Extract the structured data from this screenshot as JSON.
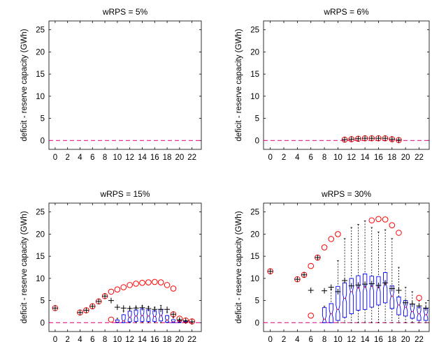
{
  "chart_data": [
    {
      "type": "box",
      "title": "wRPS = 5%",
      "ylabel": "deficit - reserve capacity (GWh)",
      "xlabel": "",
      "xlim": [
        -1,
        23.5
      ],
      "ylim": [
        -2,
        27
      ],
      "xticks": [
        0,
        2,
        4,
        6,
        8,
        10,
        12,
        14,
        16,
        18,
        20,
        22
      ],
      "yticks": [
        0,
        5,
        10,
        15,
        20,
        25
      ],
      "reference_line_y": 0,
      "max_points": [],
      "mean_points": [],
      "outliers": [],
      "boxes": []
    },
    {
      "type": "box",
      "title": "wRPS = 6%",
      "ylabel": "deficit - reserve capacity (GWh)",
      "xlabel": "",
      "xlim": [
        -1,
        23.5
      ],
      "ylim": [
        -2,
        27
      ],
      "xticks": [
        0,
        2,
        4,
        6,
        8,
        10,
        12,
        14,
        16,
        18,
        20,
        22
      ],
      "yticks": [
        0,
        5,
        10,
        15,
        20,
        25
      ],
      "reference_line_y": 0,
      "max_points": [
        {
          "x": 11,
          "y": 0.2
        },
        {
          "x": 12,
          "y": 0.3
        },
        {
          "x": 13,
          "y": 0.4
        },
        {
          "x": 14,
          "y": 0.5
        },
        {
          "x": 15,
          "y": 0.5
        },
        {
          "x": 16,
          "y": 0.5
        },
        {
          "x": 17,
          "y": 0.5
        },
        {
          "x": 18,
          "y": 0.3
        },
        {
          "x": 19,
          "y": 0.1
        }
      ],
      "mean_points": [
        {
          "x": 11,
          "y": 0.2
        },
        {
          "x": 12,
          "y": 0.3
        },
        {
          "x": 13,
          "y": 0.4
        },
        {
          "x": 14,
          "y": 0.5
        },
        {
          "x": 15,
          "y": 0.5
        },
        {
          "x": 16,
          "y": 0.5
        },
        {
          "x": 17,
          "y": 0.5
        },
        {
          "x": 18,
          "y": 0.3
        },
        {
          "x": 19,
          "y": 0.1
        }
      ],
      "outliers": [],
      "boxes": []
    },
    {
      "type": "box",
      "title": "wRPS = 15%",
      "ylabel": "deficit - reserve capacity (GWh)",
      "xlabel": "",
      "xlim": [
        -1,
        23.5
      ],
      "ylim": [
        -2,
        27
      ],
      "xticks": [
        0,
        2,
        4,
        6,
        8,
        10,
        12,
        14,
        16,
        18,
        20,
        22
      ],
      "yticks": [
        0,
        5,
        10,
        15,
        20,
        25
      ],
      "reference_line_y": 0,
      "max_points": [
        {
          "x": 0,
          "y": 3.3
        },
        {
          "x": 4,
          "y": 2.3
        },
        {
          "x": 5,
          "y": 2.8
        },
        {
          "x": 6,
          "y": 3.7
        },
        {
          "x": 7,
          "y": 4.8
        },
        {
          "x": 8,
          "y": 6.0
        },
        {
          "x": 9,
          "y": 7.0
        },
        {
          "x": 10,
          "y": 7.5
        },
        {
          "x": 11,
          "y": 8.0
        },
        {
          "x": 12,
          "y": 8.5
        },
        {
          "x": 13,
          "y": 8.8
        },
        {
          "x": 14,
          "y": 9.0
        },
        {
          "x": 15,
          "y": 9.1
        },
        {
          "x": 16,
          "y": 9.2
        },
        {
          "x": 17,
          "y": 9.1
        },
        {
          "x": 18,
          "y": 8.5
        },
        {
          "x": 19,
          "y": 7.7
        },
        {
          "x": 9,
          "y": 0.7
        },
        {
          "x": 19,
          "y": 1.9
        },
        {
          "x": 20,
          "y": 0.9
        },
        {
          "x": 21,
          "y": 0.5
        },
        {
          "x": 22,
          "y": 0.3
        }
      ],
      "mean_points": [
        {
          "x": 0,
          "y": 3.3
        },
        {
          "x": 4,
          "y": 2.3
        },
        {
          "x": 5,
          "y": 2.8
        },
        {
          "x": 6,
          "y": 3.7
        },
        {
          "x": 7,
          "y": 4.8
        },
        {
          "x": 8,
          "y": 6.0
        },
        {
          "x": 9,
          "y": 5.0
        },
        {
          "x": 10,
          "y": 3.5
        },
        {
          "x": 11,
          "y": 3.3
        },
        {
          "x": 12,
          "y": 3.2
        },
        {
          "x": 13,
          "y": 3.3
        },
        {
          "x": 14,
          "y": 3.4
        },
        {
          "x": 15,
          "y": 3.2
        },
        {
          "x": 16,
          "y": 3.0
        },
        {
          "x": 17,
          "y": 3.0
        },
        {
          "x": 18,
          "y": 3.0
        },
        {
          "x": 19,
          "y": 1.9
        },
        {
          "x": 20,
          "y": 0.6
        },
        {
          "x": 21,
          "y": 0.4
        },
        {
          "x": 22,
          "y": 0.2
        }
      ],
      "outliers": [],
      "boxes": [
        {
          "x": 10,
          "whislo": 0,
          "q1": 0,
          "med": 0.1,
          "q3": 0.6,
          "whishi": 1.0
        },
        {
          "x": 11,
          "whislo": 0,
          "q1": 0,
          "med": 0.4,
          "q3": 1.8,
          "whishi": 2.6
        },
        {
          "x": 12,
          "whislo": 0,
          "q1": 0.2,
          "med": 1.2,
          "q3": 2.6,
          "whishi": 3.3
        },
        {
          "x": 13,
          "whislo": 0,
          "q1": 0.3,
          "med": 1.5,
          "q3": 2.9,
          "whishi": 3.5
        },
        {
          "x": 14,
          "whislo": 0,
          "q1": 0.3,
          "med": 1.6,
          "q3": 3.1,
          "whishi": 3.8
        },
        {
          "x": 15,
          "whislo": 0,
          "q1": 0.3,
          "med": 1.5,
          "q3": 2.9,
          "whishi": 3.6
        },
        {
          "x": 16,
          "whislo": 0,
          "q1": 0.3,
          "med": 1.4,
          "q3": 2.7,
          "whishi": 3.5
        },
        {
          "x": 17,
          "whislo": 0,
          "q1": 0.4,
          "med": 1.6,
          "q3": 3.0,
          "whishi": 3.9
        },
        {
          "x": 18,
          "whislo": 0,
          "q1": 0.1,
          "med": 0.6,
          "q3": 1.6,
          "whishi": 2.4
        },
        {
          "x": 19,
          "whislo": 0,
          "q1": 0,
          "med": 0.2,
          "q3": 0.7,
          "whishi": 1.2
        },
        {
          "x": 20,
          "whislo": 0,
          "q1": 0,
          "med": 0.1,
          "q3": 0.4,
          "whishi": 0.8
        },
        {
          "x": 21,
          "whislo": 0,
          "q1": 0,
          "med": 0.1,
          "q3": 0.3,
          "whishi": 0.5
        }
      ]
    },
    {
      "type": "box",
      "title": "wRPS = 30%",
      "ylabel": "deficit - reserve capacity (GWh)",
      "xlabel": "",
      "xlim": [
        -1,
        23.5
      ],
      "ylim": [
        -2,
        27
      ],
      "xticks": [
        0,
        2,
        4,
        6,
        8,
        10,
        12,
        14,
        16,
        18,
        20,
        22
      ],
      "yticks": [
        0,
        5,
        10,
        15,
        20,
        25
      ],
      "reference_line_y": 0,
      "max_points": [
        {
          "x": 0,
          "y": 11.6
        },
        {
          "x": 4,
          "y": 9.8
        },
        {
          "x": 5,
          "y": 10.8
        },
        {
          "x": 6,
          "y": 12.8
        },
        {
          "x": 7,
          "y": 14.7
        },
        {
          "x": 8,
          "y": 17.0
        },
        {
          "x": 9,
          "y": 18.9
        },
        {
          "x": 10,
          "y": 20.0
        },
        {
          "x": 15,
          "y": 23.1
        },
        {
          "x": 16,
          "y": 23.4
        },
        {
          "x": 17,
          "y": 23.3
        },
        {
          "x": 18,
          "y": 22.0
        },
        {
          "x": 19,
          "y": 20.3
        },
        {
          "x": 6,
          "y": 1.6
        },
        {
          "x": 22,
          "y": 5.6
        }
      ],
      "mean_points": [
        {
          "x": 0,
          "y": 11.6
        },
        {
          "x": 4,
          "y": 9.8
        },
        {
          "x": 5,
          "y": 10.8
        },
        {
          "x": 6,
          "y": 7.3
        },
        {
          "x": 7,
          "y": 14.7
        },
        {
          "x": 8,
          "y": 7.2
        },
        {
          "x": 9,
          "y": 8.0
        },
        {
          "x": 10,
          "y": 7.0
        },
        {
          "x": 11,
          "y": 9.5
        },
        {
          "x": 12,
          "y": 8.3
        },
        {
          "x": 13,
          "y": 8.5
        },
        {
          "x": 14,
          "y": 8.7
        },
        {
          "x": 15,
          "y": 8.8
        },
        {
          "x": 16,
          "y": 8.4
        },
        {
          "x": 17,
          "y": 9.0
        },
        {
          "x": 18,
          "y": 7.7
        },
        {
          "x": 19,
          "y": 7.3
        },
        {
          "x": 20,
          "y": 4.5
        },
        {
          "x": 21,
          "y": 4.2
        },
        {
          "x": 22,
          "y": 3.8
        },
        {
          "x": 23,
          "y": 3.3
        }
      ],
      "outliers": [],
      "boxes": [
        {
          "x": 8,
          "whislo": 0,
          "q1": 0,
          "med": 0.8,
          "q3": 3.4,
          "whishi": 3.7
        },
        {
          "x": 9,
          "whislo": 0,
          "q1": 0,
          "med": 2.0,
          "q3": 4.3,
          "whishi": 7.5
        },
        {
          "x": 10,
          "whislo": 0,
          "q1": 0.5,
          "med": 3.0,
          "q3": 8.2,
          "whishi": 14.0
        },
        {
          "x": 11,
          "whislo": 0,
          "q1": 1.2,
          "med": 5.5,
          "q3": 9.0,
          "whishi": 19.0
        },
        {
          "x": 12,
          "whislo": 0,
          "q1": 2.0,
          "med": 7.0,
          "q3": 10.0,
          "whishi": 21.5
        },
        {
          "x": 13,
          "whislo": 0,
          "q1": 2.8,
          "med": 7.8,
          "q3": 10.6,
          "whishi": 22.2
        },
        {
          "x": 14,
          "whislo": 0,
          "q1": 3.0,
          "med": 8.0,
          "q3": 11.0,
          "whishi": 23.0
        },
        {
          "x": 15,
          "whislo": 0,
          "q1": 3.5,
          "med": 8.2,
          "q3": 10.5,
          "whishi": 21.5
        },
        {
          "x": 16,
          "whislo": 0,
          "q1": 4.0,
          "med": 7.9,
          "q3": 10.4,
          "whishi": 20.5
        },
        {
          "x": 17,
          "whislo": 0,
          "q1": 4.5,
          "med": 8.7,
          "q3": 11.3,
          "whishi": 21.0
        },
        {
          "x": 18,
          "whislo": 0,
          "q1": 3.2,
          "med": 6.0,
          "q3": 8.3,
          "whishi": 19.0
        },
        {
          "x": 19,
          "whislo": 0,
          "q1": 1.8,
          "med": 4.0,
          "q3": 5.8,
          "whishi": 12.5
        },
        {
          "x": 20,
          "whislo": 0,
          "q1": 1.5,
          "med": 3.5,
          "q3": 5.0,
          "whishi": 8.0
        },
        {
          "x": 21,
          "whislo": 0,
          "q1": 1.0,
          "med": 2.5,
          "q3": 4.2,
          "whishi": 7.0
        },
        {
          "x": 22,
          "whislo": 0,
          "q1": 0.5,
          "med": 2.0,
          "q3": 3.5,
          "whishi": 5.0
        },
        {
          "x": 23,
          "whislo": 0,
          "q1": 0.5,
          "med": 1.8,
          "q3": 3.2,
          "whishi": 4.5
        }
      ]
    }
  ],
  "colors": {
    "axis": "#000000",
    "box": "#0000ff",
    "median": "#ff0000",
    "whisker": "#000000",
    "reference_line": "#e31a8c",
    "max_marker": "#ff0000",
    "mean_marker": "#000000"
  },
  "icons": {
    "max_marker": "red-open-circle-marker",
    "mean_marker": "black-plus-marker"
  }
}
